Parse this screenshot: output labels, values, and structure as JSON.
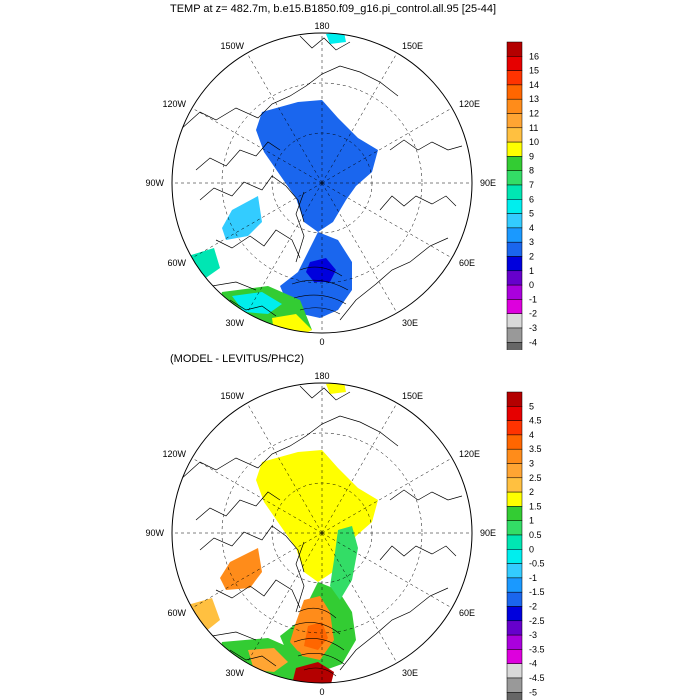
{
  "top_panel": {
    "title": "TEMP at z= 482.7m, b.e15.B1850.f09_g16.pi_control.all.95 [25-44]",
    "longitude_labels": [
      "180",
      "150E",
      "120E",
      "90E",
      "60E",
      "30E",
      "0",
      "30W",
      "60W",
      "90W",
      "120W",
      "150W"
    ],
    "colorbar": {
      "labels": [
        "16",
        "15",
        "14",
        "13",
        "12",
        "11",
        "10",
        "9",
        "8",
        "7",
        "6",
        "5",
        "4",
        "3",
        "2",
        "1",
        "0",
        "-1",
        "-2",
        "-3",
        "-4"
      ],
      "colors": [
        "#b40000",
        "#e60000",
        "#ff3300",
        "#ff6600",
        "#ff8c1a",
        "#ffa533",
        "#ffc040",
        "#ffff00",
        "#33cc33",
        "#33dd66",
        "#00e6b3",
        "#00eeee",
        "#33ccff",
        "#1a99ff",
        "#1a66ee",
        "#0000dd",
        "#6600cc",
        "#aa00dd",
        "#dd00dd",
        "#d9d9d9",
        "#999999",
        "#666666"
      ]
    }
  },
  "bottom_panel": {
    "title": "(MODEL - LEVITUS/PHC2)",
    "longitude_labels": [
      "180",
      "150E",
      "120E",
      "90E",
      "60E",
      "30E",
      "0",
      "30W",
      "60W",
      "90W",
      "120W",
      "150W"
    ],
    "colorbar": {
      "labels": [
        "5",
        "4.5",
        "4",
        "3.5",
        "3",
        "2.5",
        "2",
        "1.5",
        "1",
        "0.5",
        "0",
        "-0.5",
        "-1",
        "-1.5",
        "-2",
        "-2.5",
        "-3",
        "-3.5",
        "-4",
        "-4.5",
        "-5"
      ],
      "colors": [
        "#b40000",
        "#e60000",
        "#ff3300",
        "#ff6600",
        "#ff8c1a",
        "#ffa533",
        "#ffc040",
        "#ffff00",
        "#33cc33",
        "#33dd66",
        "#00e6b3",
        "#00eeee",
        "#33ccff",
        "#1a99ff",
        "#1a66ee",
        "#0000dd",
        "#6600cc",
        "#aa00dd",
        "#dd00dd",
        "#d9d9d9",
        "#999999",
        "#666666"
      ]
    }
  }
}
